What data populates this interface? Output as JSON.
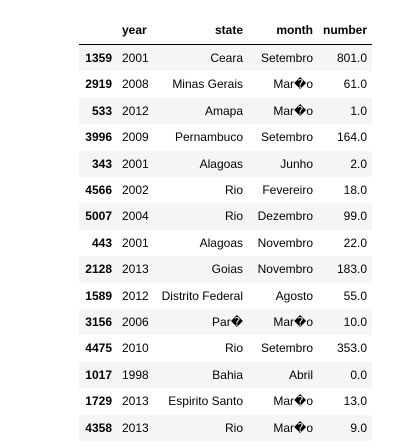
{
  "table": {
    "columns": {
      "index": "",
      "year": "year",
      "state": "state",
      "month": "month",
      "number": "number"
    },
    "rows": [
      {
        "index": "1359",
        "year": "2001",
        "state": "Ceara",
        "month": "Setembro",
        "number": "801.0"
      },
      {
        "index": "2919",
        "year": "2008",
        "state": "Minas Gerais",
        "month": "Mar�o",
        "number": "61.0"
      },
      {
        "index": "533",
        "year": "2012",
        "state": "Amapa",
        "month": "Mar�o",
        "number": "1.0"
      },
      {
        "index": "3996",
        "year": "2009",
        "state": "Pernambuco",
        "month": "Setembro",
        "number": "164.0"
      },
      {
        "index": "343",
        "year": "2001",
        "state": "Alagoas",
        "month": "Junho",
        "number": "2.0"
      },
      {
        "index": "4566",
        "year": "2002",
        "state": "Rio",
        "month": "Fevereiro",
        "number": "18.0"
      },
      {
        "index": "5007",
        "year": "2004",
        "state": "Rio",
        "month": "Dezembro",
        "number": "99.0"
      },
      {
        "index": "443",
        "year": "2001",
        "state": "Alagoas",
        "month": "Novembro",
        "number": "22.0"
      },
      {
        "index": "2128",
        "year": "2013",
        "state": "Goias",
        "month": "Novembro",
        "number": "183.0"
      },
      {
        "index": "1589",
        "year": "2012",
        "state": "Distrito Federal",
        "month": "Agosto",
        "number": "55.0"
      },
      {
        "index": "3156",
        "year": "2006",
        "state": "Par�",
        "month": "Mar�o",
        "number": "10.0"
      },
      {
        "index": "4475",
        "year": "2010",
        "state": "Rio",
        "month": "Setembro",
        "number": "353.0"
      },
      {
        "index": "1017",
        "year": "1998",
        "state": "Bahia",
        "month": "Abril",
        "number": "0.0"
      },
      {
        "index": "1729",
        "year": "2013",
        "state": "Espirito Santo",
        "month": "Mar�o",
        "number": "13.0"
      },
      {
        "index": "4358",
        "year": "2013",
        "state": "Rio",
        "month": "Mar�o",
        "number": "9.0"
      }
    ]
  }
}
